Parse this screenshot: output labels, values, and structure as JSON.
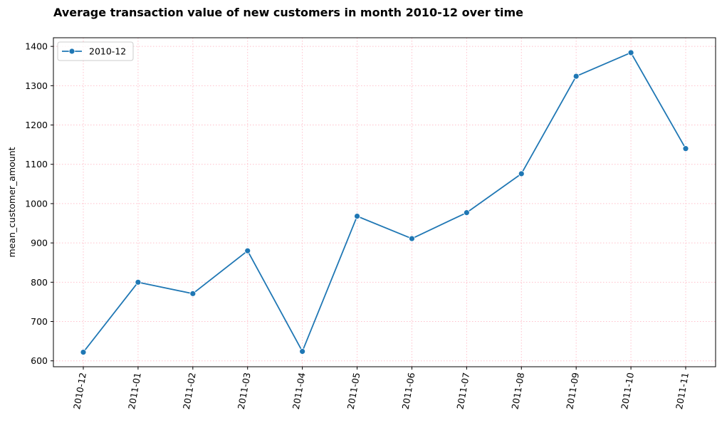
{
  "chart_data": {
    "type": "line",
    "title": "Average transaction value of new customers in month 2010-12 over time",
    "xlabel": "",
    "ylabel": "mean_customer_amount",
    "categories": [
      "2010-12",
      "2011-01",
      "2011-02",
      "2011-03",
      "2011-04",
      "2011-05",
      "2011-06",
      "2011-07",
      "2011-08",
      "2011-09",
      "2011-10",
      "2011-11"
    ],
    "series": [
      {
        "name": "2010-12",
        "color": "#1f77b4",
        "marker": "circle",
        "values": [
          622,
          800,
          771,
          880,
          624,
          968,
          911,
          977,
          1076,
          1324,
          1384,
          1140
        ]
      }
    ],
    "y_ticks": [
      600,
      700,
      800,
      900,
      1000,
      1100,
      1200,
      1300,
      1400
    ],
    "ylim": [
      585,
      1422
    ],
    "grid": true,
    "grid_color": "#ffc0cb",
    "grid_style": "dotted",
    "legend": "top-left",
    "x_tick_rotation": -80
  }
}
